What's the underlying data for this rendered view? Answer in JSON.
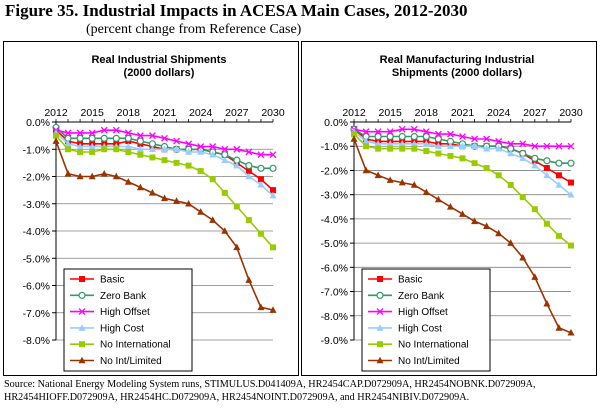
{
  "figure": {
    "title": "Figure 35.  Industrial Impacts in ACESA Main Cases, 2012-2030",
    "subtitle": "(percent change from Reference Case)",
    "source": "Source:  National Energy Modeling System runs, STIMULUS.D041409A, HR2454CAP.D072909A, HR2454NOBNK.D072909A, HR2454HIOFF.D072909A, HR2454HC.D072909A, HR2454NOINT.D072909A, and HR2454NIBIV.D072909A."
  },
  "colors": {
    "Basic": "#ff0000",
    "Zero Bank": "#339966",
    "High Offset": "#ff00ff",
    "High Cost": "#99ccff",
    "No International": "#99cc00",
    "No Int/Limited": "#993300"
  },
  "chart_data": [
    {
      "type": "line",
      "title_lines": [
        "Real Industrial Shipments",
        "(2000 dollars)"
      ],
      "x": [
        2012,
        2013,
        2014,
        2015,
        2016,
        2017,
        2018,
        2019,
        2020,
        2021,
        2022,
        2023,
        2024,
        2025,
        2026,
        2027,
        2028,
        2029,
        2030
      ],
      "x_ticks": [
        2012,
        2015,
        2018,
        2021,
        2024,
        2027,
        2030
      ],
      "x_axis_position": "top",
      "ylim": [
        -8.0,
        0.0
      ],
      "y_ticks": [
        "0.0%",
        "-1.0%",
        "-2.0%",
        "-3.0%",
        "-4.0%",
        "-5.0%",
        "-6.0%",
        "-7.0%",
        "-8.0%"
      ],
      "grid": true,
      "legend": "bottom-left",
      "series": [
        {
          "name": "Basic",
          "marker": "square",
          "values": [
            -0.3,
            -0.7,
            -0.8,
            -0.8,
            -0.8,
            -0.8,
            -0.7,
            -0.8,
            -0.9,
            -1.0,
            -1.0,
            -1.0,
            -1.0,
            -1.1,
            -1.2,
            -1.5,
            -1.8,
            -2.1,
            -2.5
          ]
        },
        {
          "name": "Zero Bank",
          "marker": "circle",
          "values": [
            -0.2,
            -0.6,
            -0.6,
            -0.6,
            -0.6,
            -0.6,
            -0.6,
            -0.7,
            -0.8,
            -0.9,
            -1.0,
            -1.0,
            -1.0,
            -1.1,
            -1.2,
            -1.4,
            -1.6,
            -1.7,
            -1.7
          ]
        },
        {
          "name": "High Offset",
          "marker": "x",
          "values": [
            -0.3,
            -0.4,
            -0.4,
            -0.4,
            -0.3,
            -0.3,
            -0.4,
            -0.5,
            -0.5,
            -0.6,
            -0.7,
            -0.8,
            -0.9,
            -0.9,
            -1.0,
            -1.0,
            -1.1,
            -1.2,
            -1.2
          ]
        },
        {
          "name": "High Cost",
          "marker": "triangle",
          "values": [
            -0.4,
            -0.8,
            -0.9,
            -0.9,
            -0.9,
            -0.9,
            -0.9,
            -1.0,
            -1.0,
            -1.0,
            -1.0,
            -1.1,
            -1.1,
            -1.2,
            -1.4,
            -1.6,
            -2.0,
            -2.3,
            -2.7
          ]
        },
        {
          "name": "No International",
          "marker": "square",
          "values": [
            -0.5,
            -1.0,
            -1.1,
            -1.1,
            -1.0,
            -1.0,
            -1.1,
            -1.2,
            -1.3,
            -1.4,
            -1.5,
            -1.6,
            -1.8,
            -2.1,
            -2.6,
            -3.1,
            -3.6,
            -4.1,
            -4.6
          ]
        },
        {
          "name": "No Int/Limited",
          "marker": "triangle",
          "values": [
            -0.7,
            -1.9,
            -2.0,
            -2.0,
            -1.9,
            -2.0,
            -2.2,
            -2.4,
            -2.6,
            -2.8,
            -2.9,
            -3.0,
            -3.3,
            -3.6,
            -4.0,
            -4.6,
            -5.8,
            -6.8,
            -6.9
          ]
        }
      ]
    },
    {
      "type": "line",
      "title_lines": [
        "Real Manufacturing Industrial",
        "Shipments (2000 dollars)"
      ],
      "x": [
        2012,
        2013,
        2014,
        2015,
        2016,
        2017,
        2018,
        2019,
        2020,
        2021,
        2022,
        2023,
        2024,
        2025,
        2026,
        2027,
        2028,
        2029,
        2030
      ],
      "x_ticks": [
        2012,
        2015,
        2018,
        2021,
        2024,
        2027,
        2030
      ],
      "x_axis_position": "top",
      "ylim": [
        -9.0,
        0.0
      ],
      "y_ticks": [
        "0.0%",
        "-1.0%",
        "-2.0%",
        "-3.0%",
        "-4.0%",
        "-5.0%",
        "-6.0%",
        "-7.0%",
        "-8.0%",
        "-9.0%"
      ],
      "grid": true,
      "legend": "bottom-left",
      "series": [
        {
          "name": "Basic",
          "marker": "square",
          "values": [
            -0.3,
            -0.7,
            -0.8,
            -0.8,
            -0.8,
            -0.8,
            -0.8,
            -0.9,
            -0.9,
            -1.0,
            -1.0,
            -1.0,
            -1.0,
            -1.1,
            -1.3,
            -1.6,
            -1.9,
            -2.2,
            -2.5
          ]
        },
        {
          "name": "Zero Bank",
          "marker": "circle",
          "values": [
            -0.3,
            -0.6,
            -0.6,
            -0.6,
            -0.6,
            -0.6,
            -0.6,
            -0.7,
            -0.8,
            -0.9,
            -1.0,
            -1.0,
            -1.0,
            -1.1,
            -1.3,
            -1.5,
            -1.6,
            -1.7,
            -1.7
          ]
        },
        {
          "name": "High Offset",
          "marker": "x",
          "values": [
            -0.3,
            -0.4,
            -0.4,
            -0.4,
            -0.3,
            -0.3,
            -0.4,
            -0.5,
            -0.5,
            -0.6,
            -0.7,
            -0.7,
            -0.8,
            -0.9,
            -0.9,
            -1.0,
            -1.0,
            -1.0,
            -1.0
          ]
        },
        {
          "name": "High Cost",
          "marker": "triangle",
          "values": [
            -0.4,
            -0.8,
            -0.9,
            -0.9,
            -0.9,
            -0.9,
            -0.9,
            -1.0,
            -1.0,
            -1.0,
            -1.0,
            -1.1,
            -1.1,
            -1.3,
            -1.5,
            -1.8,
            -2.2,
            -2.6,
            -3.0
          ]
        },
        {
          "name": "No International",
          "marker": "square",
          "values": [
            -0.5,
            -1.0,
            -1.1,
            -1.1,
            -1.1,
            -1.1,
            -1.2,
            -1.3,
            -1.4,
            -1.5,
            -1.7,
            -1.9,
            -2.2,
            -2.6,
            -3.1,
            -3.6,
            -4.2,
            -4.7,
            -5.1
          ]
        },
        {
          "name": "No Int/Limited",
          "marker": "triangle",
          "values": [
            -0.7,
            -2.0,
            -2.2,
            -2.4,
            -2.5,
            -2.6,
            -2.9,
            -3.2,
            -3.5,
            -3.8,
            -4.1,
            -4.3,
            -4.6,
            -5.0,
            -5.6,
            -6.4,
            -7.5,
            -8.5,
            -8.7
          ]
        }
      ]
    }
  ]
}
